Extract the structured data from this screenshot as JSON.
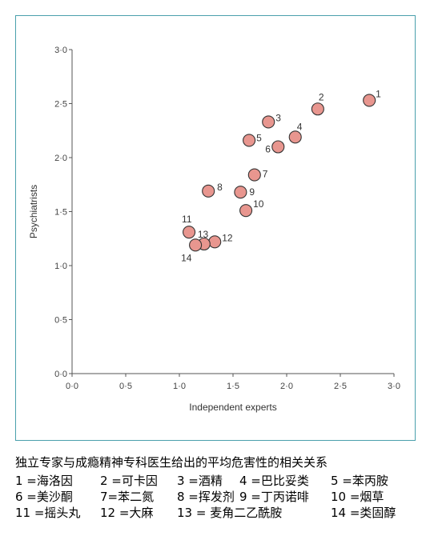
{
  "chart_data": {
    "type": "scatter",
    "xlabel": "Independent experts",
    "ylabel": "Psychiatrists",
    "xlim": [
      0,
      3
    ],
    "ylim": [
      0,
      3
    ],
    "x_ticks": [
      "0·0",
      "0·5",
      "1·0",
      "1·5",
      "2·0",
      "2·5",
      "3·0"
    ],
    "y_ticks": [
      "0·0",
      "0·5",
      "1·0",
      "1·5",
      "2·0",
      "2·5",
      "3·0"
    ],
    "grid": false,
    "point_color": "#e8968f",
    "points": [
      {
        "label": "1",
        "x": 2.77,
        "y": 2.53
      },
      {
        "label": "2",
        "x": 2.29,
        "y": 2.45
      },
      {
        "label": "3",
        "x": 1.83,
        "y": 2.33
      },
      {
        "label": "4",
        "x": 2.08,
        "y": 2.19
      },
      {
        "label": "5",
        "x": 1.65,
        "y": 2.16
      },
      {
        "label": "6",
        "x": 1.92,
        "y": 2.1
      },
      {
        "label": "7",
        "x": 1.7,
        "y": 1.84
      },
      {
        "label": "8",
        "x": 1.27,
        "y": 1.69
      },
      {
        "label": "9",
        "x": 1.57,
        "y": 1.68
      },
      {
        "label": "10",
        "x": 1.62,
        "y": 1.51
      },
      {
        "label": "11",
        "x": 1.09,
        "y": 1.31
      },
      {
        "label": "12",
        "x": 1.33,
        "y": 1.22
      },
      {
        "label": "13",
        "x": 1.23,
        "y": 1.2
      },
      {
        "label": "14",
        "x": 1.15,
        "y": 1.19
      }
    ]
  },
  "caption": "独立专家与成瘾精神专科医生给出的平均危害性的相关关系",
  "legend": [
    [
      "1 =海洛因",
      "2 =可卡因",
      "3 =酒精",
      "4 =巴比妥类",
      "5 =苯丙胺"
    ],
    [
      "6 =美沙酮",
      "7=苯二氮",
      "8 =挥发剂",
      "9 =丁丙诺啡",
      "10 =烟草"
    ],
    [
      "11 =摇头丸",
      "12 =大麻",
      "13 = 麦角二乙酰胺",
      "14 =类固醇"
    ]
  ]
}
